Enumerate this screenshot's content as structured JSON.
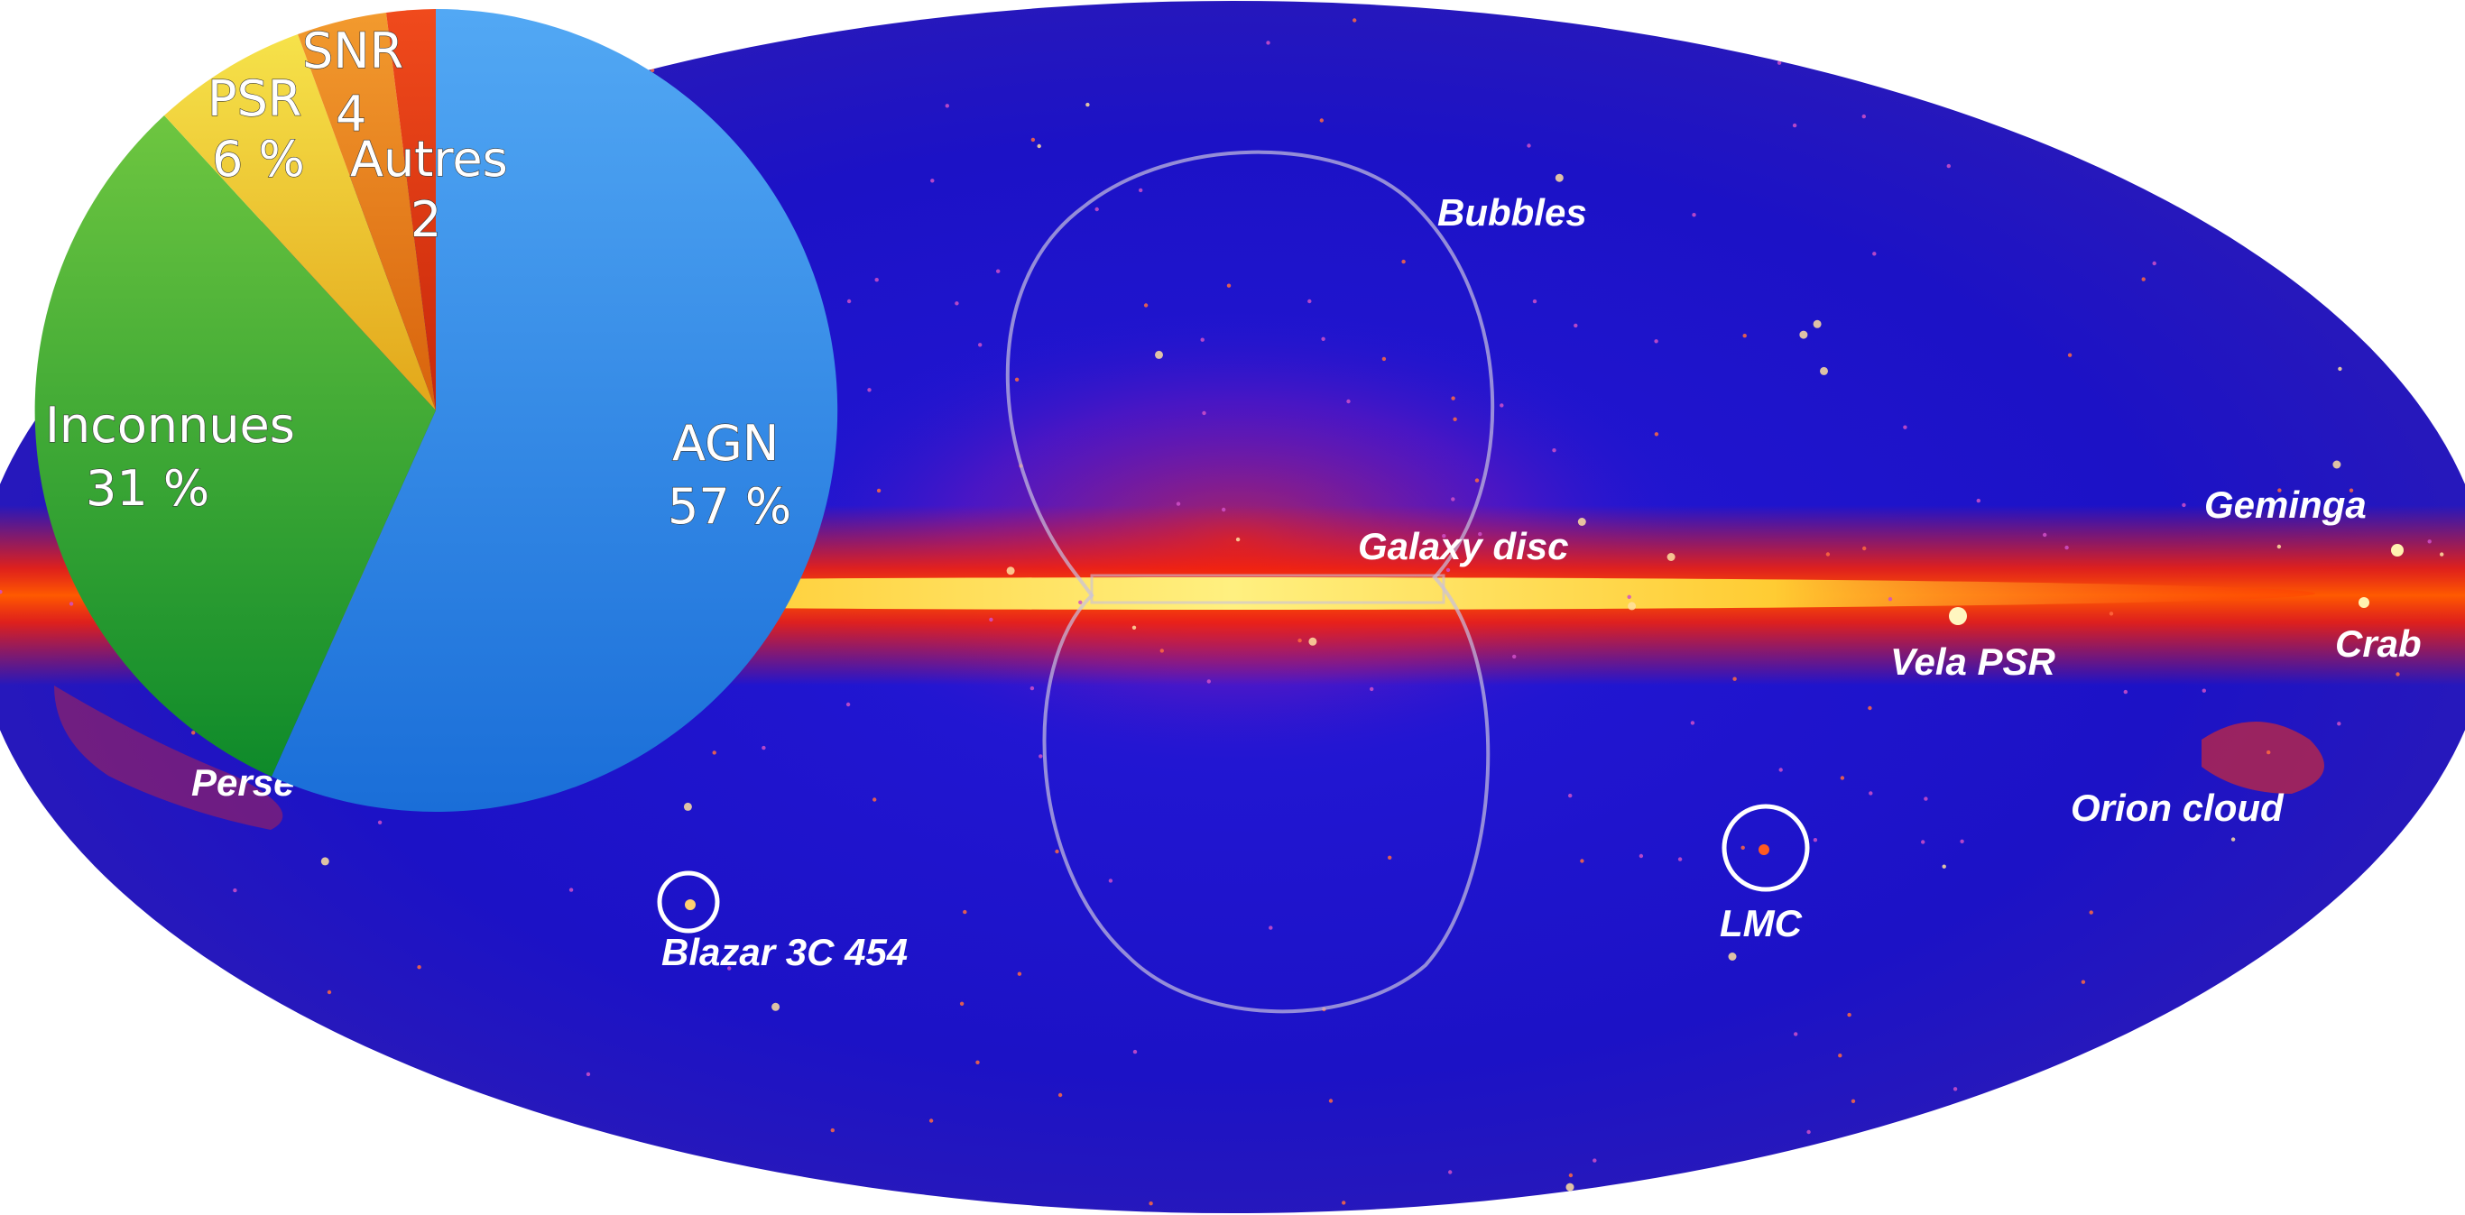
{
  "sky_map": {
    "labels": {
      "bubbles": "Bubbles",
      "galaxy_disc": "Galaxy disc",
      "geminga": "Geminga",
      "crab": "Crab",
      "vela_psr": "Vela PSR",
      "orion_cloud": "Orion cloud",
      "lmc": "LMC",
      "blazar": "Blazar 3C 454",
      "perseus": "Perse"
    },
    "colors": {
      "background": "#1a10c8",
      "disc_core": "#ffe060",
      "disc_glow": "#ff2a00"
    }
  },
  "pie_chart": {
    "slices": [
      {
        "key": "agn",
        "label": "AGN",
        "value_text": "57 %",
        "color": "#2e86e8"
      },
      {
        "key": "inconnues",
        "label": "Inconnues",
        "value_text": "31 %",
        "color": "#39a83a"
      },
      {
        "key": "psr",
        "label": "PSR",
        "value_text": "6 %",
        "color": "#e8c22a"
      },
      {
        "key": "snr",
        "label": "SNR",
        "value_text": "4",
        "color": "#e3761a"
      },
      {
        "key": "autres",
        "label": "Autres",
        "value_text": "2",
        "color": "#dc3a12"
      }
    ]
  }
}
